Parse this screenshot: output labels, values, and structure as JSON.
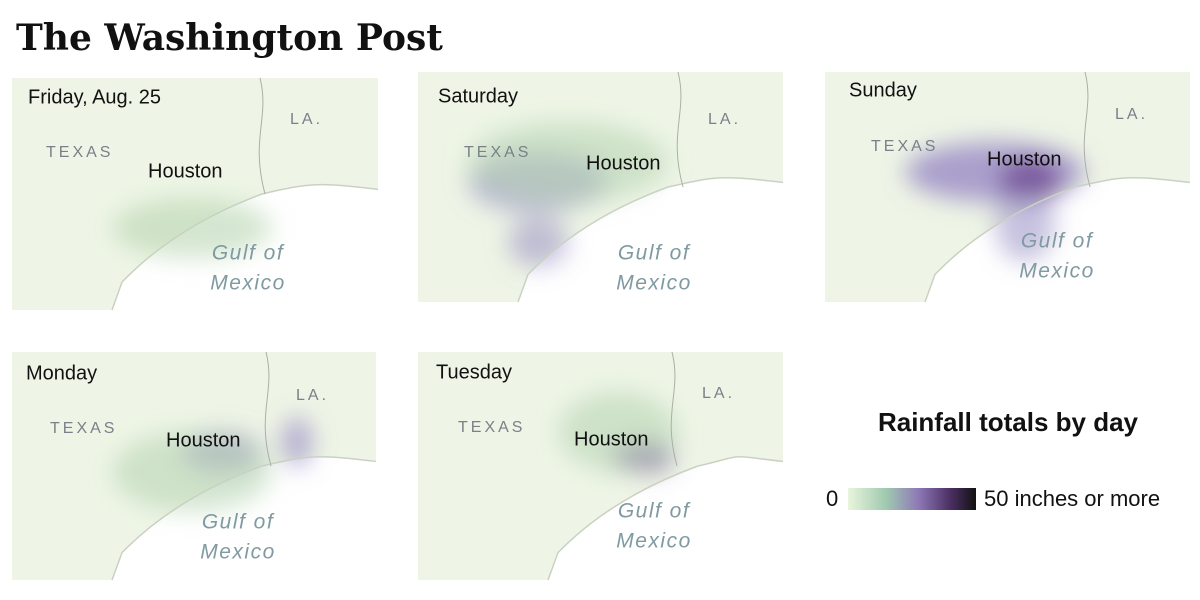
{
  "header": {
    "title": "The Washington Post"
  },
  "panels": [
    {
      "day": "Friday, Aug. 25"
    },
    {
      "day": "Saturday"
    },
    {
      "day": "Sunday"
    },
    {
      "day": "Monday"
    },
    {
      "day": "Tuesday"
    }
  ],
  "labels": {
    "state_west": "TEXAS",
    "state_east": "LA.",
    "city": "Houston",
    "gulf": [
      "Gulf of",
      "Mexico"
    ]
  },
  "legend": {
    "title": "Rainfall totals by day",
    "min_label": "0",
    "max_label": "50 inches or more"
  }
}
